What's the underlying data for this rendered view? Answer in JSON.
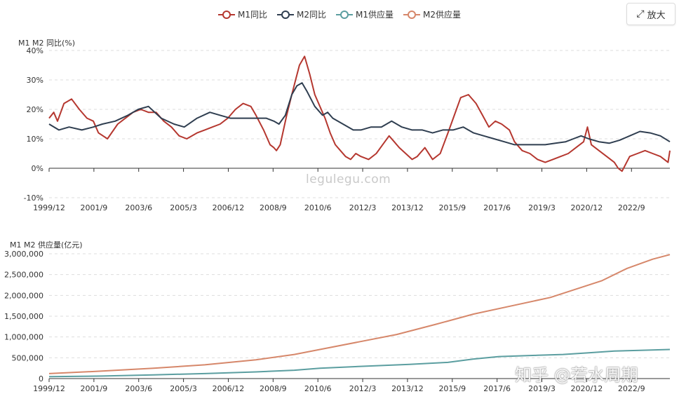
{
  "legend": [
    {
      "label": "M1同比",
      "color": "#b5372f"
    },
    {
      "label": "M2同比",
      "color": "#2f3e50"
    },
    {
      "label": "M1供应量",
      "color": "#5b9ea0"
    },
    {
      "label": "M2供应量",
      "color": "#d6876a"
    }
  ],
  "toolbar": {
    "zoom_icon": "expand-icon",
    "zoom_label": "放大"
  },
  "watermark": "legulegu.com",
  "zhihu_mark": "知乎 @若水周期",
  "chart_data": [
    {
      "type": "line",
      "ylabel": "M1 M2 同比(%)",
      "ylim": [
        -10,
        40
      ],
      "yticks": [
        "-10%",
        "0%",
        "10%",
        "20%",
        "30%",
        "40%"
      ],
      "ytick_values": [
        -10,
        0,
        10,
        20,
        30,
        40
      ],
      "x_range": [
        1999.92,
        2024.17
      ],
      "xtick_labels": [
        "1999/12",
        "2001/9",
        "2003/6",
        "2005/3",
        "2006/12",
        "2008/9",
        "2010/6",
        "2012/3",
        "2013/12",
        "2015/9",
        "2017/6",
        "2019/3",
        "2020/12",
        "2022/9"
      ],
      "xtick_values": [
        1999.92,
        2001.67,
        2003.42,
        2005.17,
        2006.92,
        2008.67,
        2010.42,
        2012.17,
        2013.92,
        2015.67,
        2017.42,
        2019.17,
        2020.92,
        2022.67
      ],
      "series": [
        {
          "name": "M1同比",
          "color": "#b5372f",
          "x": [
            1999.92,
            2000.1,
            2000.25,
            2000.5,
            2000.8,
            2001.1,
            2001.4,
            2001.65,
            2001.85,
            2002.2,
            2002.6,
            2002.9,
            2003.2,
            2003.5,
            2003.8,
            2004.1,
            2004.4,
            2004.7,
            2005.0,
            2005.3,
            2005.7,
            2006.0,
            2006.3,
            2006.6,
            2006.9,
            2007.2,
            2007.5,
            2007.8,
            2008.0,
            2008.3,
            2008.55,
            2008.7,
            2008.8,
            2008.95,
            2009.2,
            2009.4,
            2009.55,
            2009.7,
            2009.9,
            2010.1,
            2010.3,
            2010.5,
            2010.7,
            2010.9,
            2011.1,
            2011.3,
            2011.5,
            2011.7,
            2011.9,
            2012.1,
            2012.4,
            2012.7,
            2012.95,
            2013.2,
            2013.4,
            2013.6,
            2013.85,
            2014.1,
            2014.3,
            2014.6,
            2014.9,
            2015.2,
            2015.5,
            2015.75,
            2016.0,
            2016.3,
            2016.6,
            2016.85,
            2017.1,
            2017.35,
            2017.6,
            2017.9,
            2018.1,
            2018.4,
            2018.7,
            2019.0,
            2019.3,
            2019.6,
            2019.9,
            2020.2,
            2020.5,
            2020.8,
            2020.95,
            2021.1,
            2021.4,
            2021.7,
            2022.0,
            2022.15,
            2022.3,
            2022.6,
            2022.9,
            2023.2,
            2023.5,
            2023.8,
            2024.1,
            2024.17
          ],
          "y": [
            17,
            19,
            16,
            22,
            23.5,
            20,
            17,
            16,
            12,
            10,
            15,
            17,
            19,
            20,
            19,
            19,
            16,
            14,
            11,
            10,
            12,
            13,
            14,
            15,
            17,
            20,
            22,
            21,
            18,
            13,
            8,
            7,
            6,
            8,
            18,
            25,
            30,
            35,
            38,
            32,
            25,
            21,
            17,
            12,
            8,
            6,
            4,
            3,
            5,
            4,
            3,
            5,
            8,
            11,
            9,
            7,
            5,
            3,
            4,
            7,
            3,
            5,
            12,
            18,
            24,
            25,
            22,
            18,
            14,
            16,
            15,
            13,
            9,
            6,
            5,
            3,
            2,
            3,
            4,
            5,
            7,
            9,
            14,
            8,
            6,
            4,
            2,
            0,
            -1,
            4,
            5,
            6,
            5,
            4,
            2,
            6
          ]
        },
        {
          "name": "M2同比",
          "color": "#2f3e50",
          "x": [
            1999.92,
            2000.3,
            2000.7,
            2001.2,
            2001.65,
            2002.0,
            2002.5,
            2003.0,
            2003.4,
            2003.8,
            2004.3,
            2004.8,
            2005.2,
            2005.7,
            2006.2,
            2006.6,
            2007.0,
            2007.5,
            2008.0,
            2008.4,
            2008.7,
            2008.9,
            2009.15,
            2009.4,
            2009.6,
            2009.8,
            2010.0,
            2010.3,
            2010.6,
            2010.8,
            2011.0,
            2011.4,
            2011.8,
            2012.1,
            2012.5,
            2012.9,
            2013.3,
            2013.7,
            2014.1,
            2014.5,
            2014.9,
            2015.3,
            2015.7,
            2016.1,
            2016.5,
            2016.9,
            2017.3,
            2017.7,
            2018.1,
            2018.5,
            2018.9,
            2019.3,
            2019.7,
            2020.1,
            2020.4,
            2020.7,
            2021.0,
            2021.4,
            2021.8,
            2022.2,
            2022.6,
            2023.0,
            2023.4,
            2023.8,
            2024.17
          ],
          "y": [
            15,
            13,
            14,
            13,
            14,
            15,
            16,
            18,
            20,
            21,
            17,
            15,
            14,
            17,
            19,
            18,
            17,
            17,
            17,
            17,
            16,
            15,
            18,
            25,
            28,
            29,
            26,
            21,
            18,
            19,
            17,
            15,
            13,
            13,
            14,
            14,
            16,
            14,
            13,
            13,
            12,
            13,
            13,
            14,
            12,
            11,
            10,
            9,
            8,
            8,
            8,
            8,
            8.5,
            9,
            10,
            11,
            10,
            9,
            8.5,
            9.5,
            11,
            12.5,
            12,
            11,
            9
          ]
        },
        {
          "name": "M1供应量",
          "color": "#5b9ea0",
          "x": [
            1999.92,
            2002,
            2004,
            2006,
            2008,
            2009.5,
            2010.5,
            2012,
            2014,
            2015.5,
            2016.5,
            2017.5,
            2019,
            2020,
            2021,
            2022,
            2023,
            2024.17
          ],
          "y": [
            46000,
            60000,
            90000,
            120000,
            160000,
            200000,
            250000,
            290000,
            340000,
            390000,
            470000,
            530000,
            560000,
            580000,
            620000,
            660000,
            680000,
            700000
          ]
        },
        {
          "name": "M2供应量",
          "color": "#d6876a",
          "x": [
            1999.92,
            2002,
            2004,
            2006,
            2008,
            2009.5,
            2010.5,
            2012,
            2013.5,
            2015,
            2016.5,
            2018,
            2019.5,
            2020.5,
            2021.5,
            2022.5,
            2023.5,
            2024.17
          ],
          "y": [
            119000,
            180000,
            250000,
            330000,
            450000,
            580000,
            700000,
            880000,
            1060000,
            1300000,
            1550000,
            1750000,
            1950000,
            2150000,
            2350000,
            2650000,
            2870000,
            2980000
          ]
        }
      ]
    },
    {
      "type": "line",
      "ylabel": "M1 M2 供应量(亿元)",
      "ylim": [
        0,
        3000000
      ],
      "yticks": [
        "0",
        "500,000",
        "1,000,000",
        "1,500,000",
        "2,000,000",
        "2,500,000",
        "3,000,000"
      ],
      "ytick_values": [
        0,
        500000,
        1000000,
        1500000,
        2000000,
        2500000,
        3000000
      ],
      "x_range": [
        1999.92,
        2024.17
      ],
      "xtick_labels": [
        "1999/12",
        "2001/9",
        "2003/6",
        "2005/3",
        "2006/12",
        "2008/9",
        "2010/6",
        "2012/3",
        "2013/12",
        "2015/9",
        "2017/6",
        "2019/3",
        "2020/12",
        "2022/9"
      ],
      "xtick_values": [
        1999.92,
        2001.67,
        2003.42,
        2005.17,
        2006.92,
        2008.67,
        2010.42,
        2012.17,
        2013.92,
        2015.67,
        2017.42,
        2019.17,
        2020.92,
        2022.67
      ],
      "series_refs": [
        "M1供应量",
        "M2供应量"
      ]
    }
  ]
}
